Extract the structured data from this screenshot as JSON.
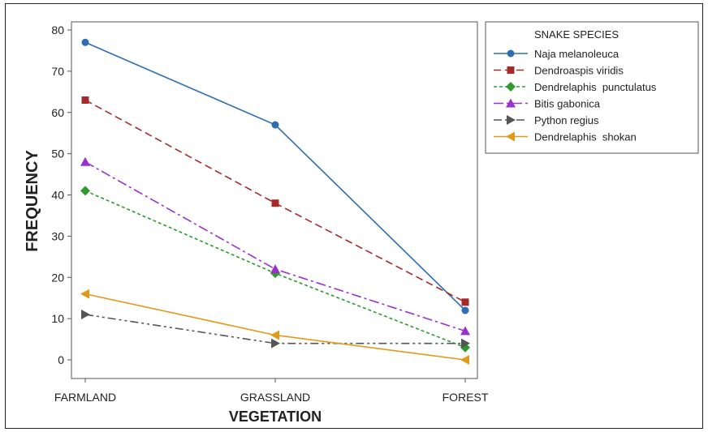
{
  "chart_data": {
    "type": "line",
    "categories": [
      "FARMLAND",
      "GRASSLAND",
      "FOREST"
    ],
    "xlabel": "VEGETATION",
    "ylabel": "FREQUENCY",
    "ylim": [
      0,
      80
    ],
    "yticks": [
      0,
      10,
      20,
      30,
      40,
      50,
      60,
      70,
      80
    ],
    "grid": false,
    "legend_title": "SNAKE SPECIES",
    "legend_position": "top-right outside",
    "series": [
      {
        "name": "Naja melanoleuca",
        "values": [
          77,
          57,
          12
        ],
        "color": "#2e6db4",
        "marker": "circle",
        "dash": "solid"
      },
      {
        "name": "Dendroaspis viridis",
        "values": [
          63,
          38,
          14
        ],
        "color": "#a52a2a",
        "marker": "square",
        "dash": "dash"
      },
      {
        "name": "Dendrelaphis  punctulatus",
        "values": [
          41,
          21,
          3
        ],
        "color": "#2e9a2e",
        "marker": "diamond",
        "dash": "shortdash"
      },
      {
        "name": "Bitis gabonica",
        "values": [
          48,
          22,
          7
        ],
        "color": "#9932cc",
        "marker": "triangle-up",
        "dash": "dashdot"
      },
      {
        "name": "Python regius",
        "values": [
          11,
          4,
          4
        ],
        "color": "#555555",
        "marker": "triangle-right",
        "dash": "dashdotdot"
      },
      {
        "name": "Dendrelaphis  shokan",
        "values": [
          16,
          6,
          0
        ],
        "color": "#e09a1a",
        "marker": "triangle-left",
        "dash": "solid"
      }
    ]
  }
}
